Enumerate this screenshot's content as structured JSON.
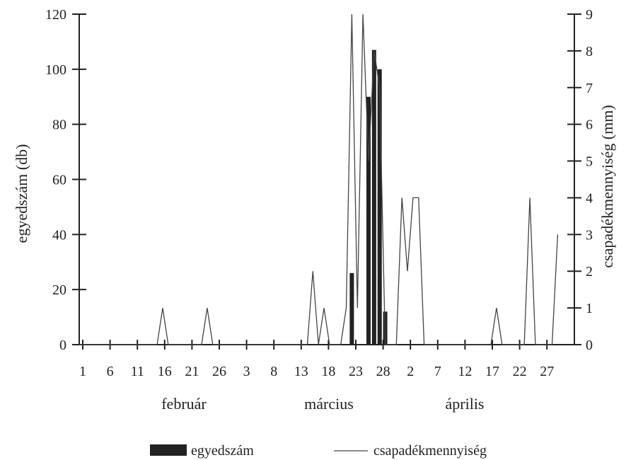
{
  "chart_data": {
    "type": "bar+line",
    "title": "",
    "x_ticks": [
      "1",
      "6",
      "11",
      "16",
      "21",
      "26",
      "3",
      "8",
      "13",
      "18",
      "23",
      "28",
      "2",
      "7",
      "12",
      "17",
      "22",
      "27"
    ],
    "months": [
      "február",
      "március",
      "április"
    ],
    "ylabel_left": "egyedszám (db)",
    "ylabel_right": "csapadékmennyiség (mm)",
    "ylim_left": [
      0,
      120
    ],
    "yticks_left": [
      0,
      20,
      40,
      60,
      80,
      100,
      120
    ],
    "ylim_right": [
      0,
      9
    ],
    "yticks_right": [
      0,
      1,
      2,
      3,
      4,
      5,
      6,
      7,
      8,
      9
    ],
    "series": [
      {
        "name": "egyedszám",
        "kind": "bar",
        "axis": "left",
        "color": "#222222",
        "points": [
          {
            "day": 50,
            "value": 26
          },
          {
            "day": 53,
            "value": 90
          },
          {
            "day": 54,
            "value": 107
          },
          {
            "day": 55,
            "value": 100
          },
          {
            "day": 56,
            "value": 12
          }
        ]
      },
      {
        "name": "csapadékmennyiség",
        "kind": "line",
        "axis": "right",
        "color": "#444444",
        "points": [
          [
            1,
            0
          ],
          [
            15,
            0
          ],
          [
            16,
            1
          ],
          [
            17,
            0
          ],
          [
            23,
            0
          ],
          [
            24,
            1
          ],
          [
            25,
            0
          ],
          [
            42,
            0
          ],
          [
            43,
            2
          ],
          [
            44,
            0
          ],
          [
            45,
            1
          ],
          [
            46,
            0
          ],
          [
            48,
            0
          ],
          [
            49,
            1
          ],
          [
            50,
            9
          ],
          [
            51,
            1
          ],
          [
            52,
            9
          ],
          [
            53,
            5
          ],
          [
            54,
            8
          ],
          [
            55,
            7
          ],
          [
            56,
            0
          ],
          [
            57,
            0
          ],
          [
            58,
            0
          ],
          [
            59,
            4
          ],
          [
            60,
            2
          ],
          [
            61,
            4
          ],
          [
            62,
            4
          ],
          [
            63,
            0
          ],
          [
            75,
            0
          ],
          [
            76,
            1
          ],
          [
            77,
            0
          ],
          [
            81,
            0
          ],
          [
            82,
            4
          ],
          [
            83,
            0
          ],
          [
            86,
            0
          ],
          [
            87,
            3
          ]
        ]
      }
    ],
    "legend_position": "bottom",
    "grid": false
  }
}
